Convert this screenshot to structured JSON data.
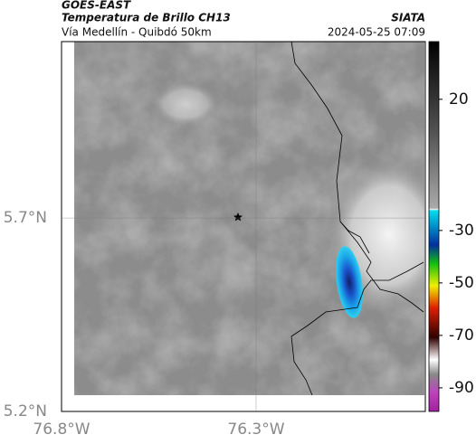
{
  "header": {
    "satellite": "GOES-EAST",
    "title": "Temperatura de Brillo CH13",
    "subtitle": "Vía Medellín - Quibdó 50km",
    "source": "SIATA",
    "datetime": "2024-05-25 07:09"
  },
  "map": {
    "xlim": [
      -76.8,
      -75.865
    ],
    "ylim": [
      5.2,
      6.156
    ],
    "xticks": [
      {
        "value": -76.8,
        "label": "76.8°W"
      },
      {
        "value": -76.3,
        "label": "76.3°W"
      }
    ],
    "yticks": [
      {
        "value": 5.2,
        "label": "5.2°N"
      },
      {
        "value": 5.7,
        "label": "5.7°N"
      }
    ],
    "grid": true
  },
  "colorbar": {
    "clim": [
      -99,
      42
    ],
    "ticks": [
      20,
      -30,
      -50,
      -70,
      -90
    ]
  }
}
